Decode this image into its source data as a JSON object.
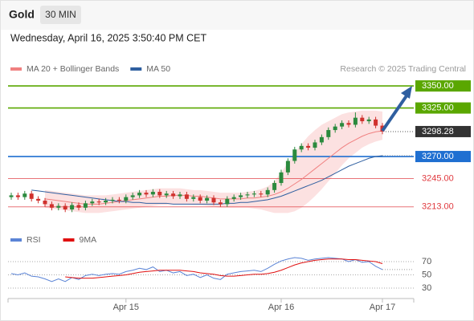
{
  "symbol": "Gold",
  "timeframe": "30 MIN",
  "timestamp": "Wednesday, April 16, 2025 3:50:40 PM CET",
  "source": "Research © 2025 Trading Central",
  "chart_data": [
    {
      "type": "candlestick",
      "categories": [
        null,
        null,
        null,
        null,
        null,
        null,
        null,
        null,
        null,
        null,
        null,
        null,
        null,
        null,
        null,
        null,
        null,
        "Apr 15",
        null,
        null,
        null,
        null,
        null,
        null,
        null,
        null,
        null,
        null,
        null,
        null,
        null,
        null,
        null,
        null,
        null,
        null,
        null,
        null,
        null,
        null,
        "Apr 16",
        null,
        null,
        null,
        null,
        null,
        null,
        null,
        null,
        null,
        null,
        null,
        null,
        null,
        null,
        "Apr 17"
      ],
      "open": [
        3224,
        3226,
        3224,
        3228,
        3222,
        3220,
        3216,
        3212,
        3214,
        3210,
        3215,
        3212,
        3217,
        3219,
        3218,
        3220,
        3221,
        3220,
        3224,
        3226,
        3229,
        3227,
        3230,
        3226,
        3228,
        3225,
        3227,
        3222,
        3224,
        3220,
        3223,
        3218,
        3216,
        3222,
        3224,
        3226,
        3227,
        3228,
        3227,
        3232,
        3240,
        3252,
        3265,
        3278,
        3282,
        3280,
        3286,
        3292,
        3300,
        3304,
        3308,
        3306,
        3314,
        3310,
        3312,
        3305
      ],
      "high": [
        3229,
        3229,
        3231,
        3231,
        3225,
        3223,
        3219,
        3217,
        3217,
        3218,
        3218,
        3220,
        3222,
        3222,
        3223,
        3224,
        3224,
        3227,
        3229,
        3232,
        3232,
        3233,
        3233,
        3231,
        3231,
        3230,
        3230,
        3227,
        3227,
        3226,
        3226,
        3221,
        3225,
        3227,
        3229,
        3230,
        3231,
        3231,
        3235,
        3243,
        3255,
        3268,
        3281,
        3285,
        3285,
        3289,
        3295,
        3303,
        3307,
        3311,
        3311,
        3320,
        3317,
        3315,
        3315,
        3308
      ],
      "low": [
        3221,
        3221,
        3221,
        3219,
        3217,
        3213,
        3209,
        3209,
        3207,
        3207,
        3209,
        3209,
        3214,
        3215,
        3215,
        3217,
        3217,
        3217,
        3221,
        3223,
        3224,
        3224,
        3223,
        3223,
        3222,
        3222,
        3219,
        3219,
        3217,
        3217,
        3215,
        3213,
        3213,
        3219,
        3221,
        3223,
        3224,
        3224,
        3224,
        3229,
        3237,
        3249,
        3262,
        3275,
        3277,
        3277,
        3283,
        3289,
        3297,
        3301,
        3303,
        3303,
        3307,
        3307,
        3302,
        3295.28
      ],
      "close": [
        3226,
        3224,
        3228,
        3222,
        3220,
        3216,
        3212,
        3214,
        3210,
        3215,
        3212,
        3217,
        3219,
        3218,
        3220,
        3221,
        3220,
        3224,
        3226,
        3229,
        3227,
        3230,
        3226,
        3228,
        3225,
        3227,
        3222,
        3224,
        3220,
        3223,
        3218,
        3216,
        3222,
        3224,
        3226,
        3227,
        3228,
        3227,
        3232,
        3240,
        3252,
        3265,
        3278,
        3282,
        3280,
        3286,
        3292,
        3300,
        3304,
        3308,
        3306,
        3314,
        3310,
        3312,
        3305,
        3298.28
      ],
      "up_color": "#2b8a3e",
      "down_color": "#d0312d",
      "series": [
        {
          "name": "MA 20 + Bollinger Bands",
          "color": "#f08080",
          "band_color": "#fbd9d9",
          "values": [
            null,
            null,
            null,
            null,
            null,
            3222,
            3221,
            3220,
            3219,
            3218,
            3217,
            3216,
            3216,
            3216,
            3217,
            3218,
            3219,
            3220,
            3221,
            3222,
            3223,
            3224,
            3225,
            3225,
            3226,
            3226,
            3226,
            3225,
            3225,
            3224,
            3223,
            3222,
            3222,
            3222,
            3222,
            3223,
            3223,
            3224,
            3225,
            3227,
            3230,
            3234,
            3239,
            3244,
            3250,
            3256,
            3262,
            3268,
            3274,
            3280,
            3285,
            3289,
            3293,
            3296,
            3298,
            3299
          ],
          "upper": [
            null,
            null,
            null,
            null,
            null,
            3232,
            3231,
            3230,
            3229,
            3228,
            3227,
            3226,
            3226,
            3226,
            3226,
            3227,
            3228,
            3229,
            3230,
            3231,
            3232,
            3233,
            3234,
            3234,
            3234,
            3234,
            3233,
            3232,
            3232,
            3231,
            3230,
            3229,
            3229,
            3229,
            3229,
            3230,
            3231,
            3233,
            3236,
            3242,
            3252,
            3263,
            3274,
            3284,
            3293,
            3300,
            3306,
            3310,
            3314,
            3318,
            3320,
            3321,
            3322,
            3322,
            3322,
            3321
          ],
          "lower": [
            null,
            null,
            null,
            null,
            null,
            3212,
            3211,
            3210,
            3209,
            3208,
            3207,
            3206,
            3206,
            3206,
            3207,
            3208,
            3209,
            3210,
            3211,
            3212,
            3213,
            3214,
            3215,
            3215,
            3216,
            3216,
            3216,
            3215,
            3215,
            3214,
            3213,
            3212,
            3212,
            3212,
            3212,
            3212,
            3211,
            3210,
            3208,
            3206,
            3206,
            3206,
            3208,
            3212,
            3218,
            3225,
            3233,
            3242,
            3251,
            3260,
            3268,
            3274,
            3280,
            3284,
            3287,
            3289
          ]
        },
        {
          "name": "MA 50",
          "color": "#2f5fa0",
          "values": [
            null,
            null,
            null,
            3232,
            3231,
            3230,
            3229,
            3228,
            3227,
            3226,
            3225,
            3224,
            3223,
            3222,
            3221,
            3220,
            3219,
            3219,
            3218,
            3218,
            3217,
            3217,
            3217,
            3217,
            3216,
            3216,
            3216,
            3216,
            3216,
            3216,
            3216,
            3216,
            3217,
            3217,
            3218,
            3218,
            3219,
            3220,
            3221,
            3223,
            3225,
            3228,
            3231,
            3234,
            3237,
            3240,
            3243,
            3247,
            3251,
            3255,
            3259,
            3262,
            3265,
            3268,
            3270,
            3271
          ]
        }
      ],
      "levels": [
        {
          "value": 3350,
          "label": "3350.00",
          "color": "#5aa700",
          "boxed": true
        },
        {
          "value": 3325,
          "label": "3325.00",
          "color": "#5aa700",
          "boxed": true
        },
        {
          "value": 3270,
          "label": "3270.00",
          "color": "#1f6fd1",
          "boxed": true
        },
        {
          "value": 3245,
          "label": "3245.00",
          "color": "#e0393e",
          "boxed": false
        },
        {
          "value": 3213,
          "label": "3213.00",
          "color": "#e0393e",
          "boxed": false
        }
      ],
      "ylim": [
        3190,
        3361
      ]
    },
    {
      "type": "line",
      "series": [
        {
          "name": "RSI",
          "color": "#5b84d6",
          "values": [
            52,
            50,
            53,
            48,
            47,
            44,
            40,
            44,
            40,
            46,
            43,
            49,
            51,
            49,
            51,
            52,
            51,
            55,
            57,
            60,
            58,
            62,
            55,
            57,
            53,
            55,
            49,
            51,
            46,
            50,
            45,
            43,
            51,
            53,
            55,
            56,
            57,
            55,
            60,
            66,
            71,
            74,
            76,
            75,
            72,
            74,
            75,
            76,
            75,
            74,
            70,
            73,
            69,
            70,
            63,
            58
          ]
        },
        {
          "name": "9MA",
          "color": "#e01010",
          "values": [
            null,
            null,
            null,
            null,
            null,
            null,
            null,
            null,
            47,
            46,
            45,
            45,
            45,
            46,
            47,
            48,
            49,
            50,
            52,
            54,
            55,
            56,
            57,
            57,
            57,
            57,
            56,
            55,
            53,
            52,
            51,
            49,
            48,
            48,
            49,
            50,
            51,
            51,
            52,
            54,
            57,
            61,
            65,
            68,
            70,
            72,
            73,
            74,
            74,
            74,
            73,
            73,
            72,
            71,
            70,
            67
          ]
        }
      ],
      "ylim": [
        16,
        90
      ],
      "yticks": [
        30,
        50,
        70
      ],
      "grid": true
    }
  ]
}
